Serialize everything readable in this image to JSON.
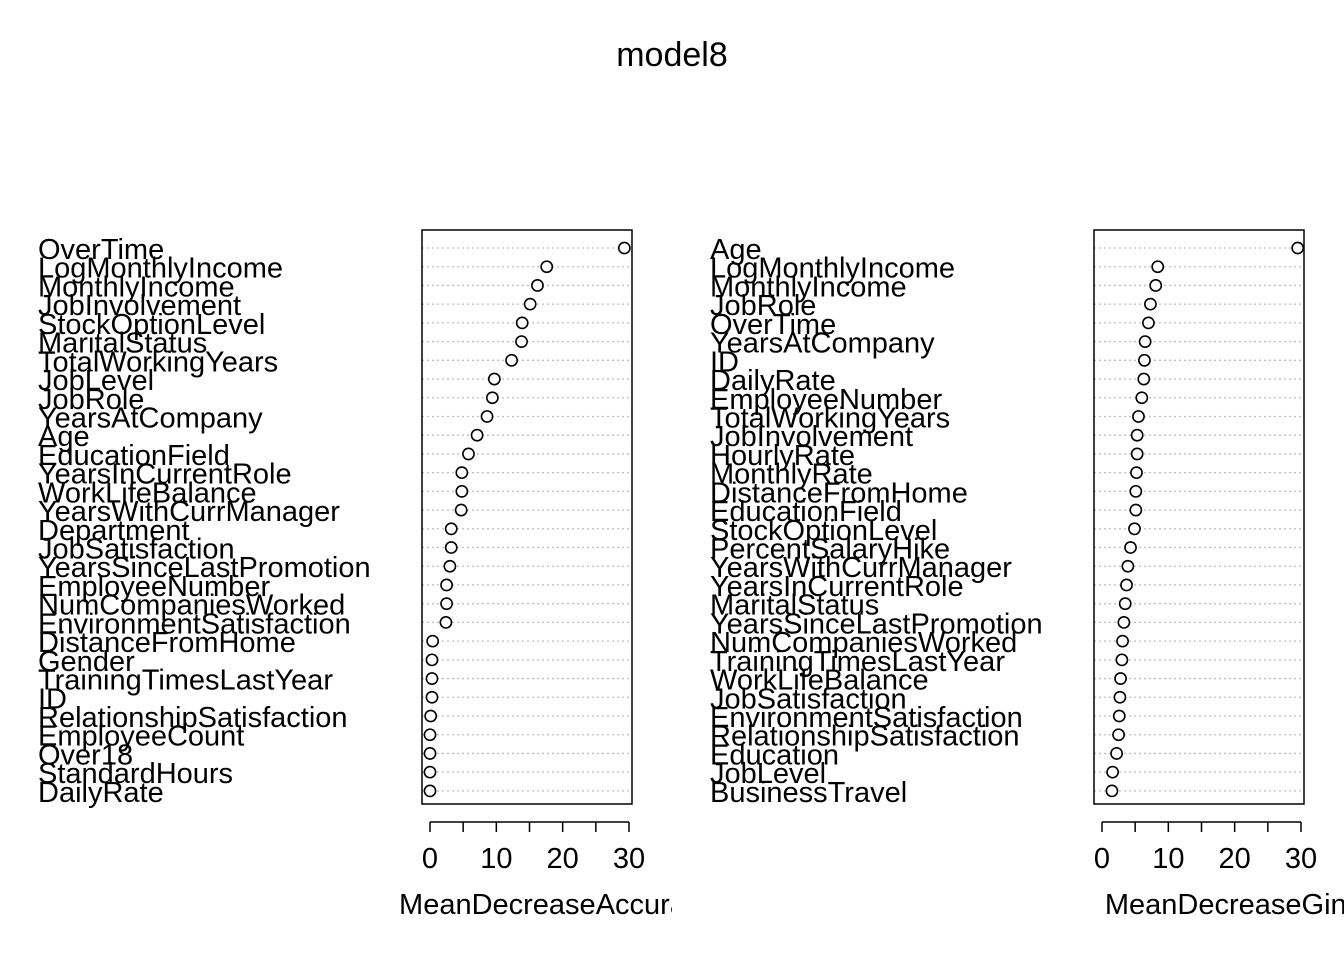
{
  "title": "model8",
  "chart_data": [
    {
      "type": "scatter",
      "style": "dotchart",
      "xlabel": "MeanDecreaseAccuracy",
      "xlim": [
        0,
        30
      ],
      "xticks": [
        0,
        10,
        20,
        30
      ],
      "grid": "dotted horizontal",
      "labels": [
        "OverTime",
        "LogMonthlyIncome",
        "MonthlyIncome",
        "JobInvolvement",
        "StockOptionLevel",
        "MaritalStatus",
        "TotalWorkingYears",
        "JobLevel",
        "JobRole",
        "YearsAtCompany",
        "Age",
        "EducationField",
        "YearsInCurrentRole",
        "WorkLifeBalance",
        "YearsWithCurrManager",
        "Department",
        "JobSatisfaction",
        "YearsSinceLastPromotion",
        "EmployeeNumber",
        "NumCompaniesWorked",
        "EnvironmentSatisfaction",
        "DistanceFromHome",
        "Gender",
        "TrainingTimesLastYear",
        "ID",
        "RelationshipSatisfaction",
        "EmployeeCount",
        "Over18",
        "StandardHours",
        "DailyRate"
      ],
      "values": [
        29.3,
        17.6,
        16.2,
        15.1,
        13.9,
        13.8,
        12.3,
        9.7,
        9.4,
        8.6,
        7.1,
        5.8,
        4.8,
        4.8,
        4.7,
        3.2,
        3.2,
        3.0,
        2.5,
        2.5,
        2.4,
        0.4,
        0.3,
        0.3,
        0.3,
        0.1,
        0.0,
        0.0,
        0.0,
        0.0
      ]
    },
    {
      "type": "scatter",
      "style": "dotchart",
      "xlabel": "MeanDecreaseGini",
      "xlim": [
        0,
        30
      ],
      "xticks": [
        0,
        10,
        20,
        30
      ],
      "grid": "dotted horizontal",
      "labels": [
        "Age",
        "LogMonthlyIncome",
        "MonthlyIncome",
        "JobRole",
        "OverTime",
        "YearsAtCompany",
        "ID",
        "DailyRate",
        "EmployeeNumber",
        "TotalWorkingYears",
        "JobInvolvement",
        "HourlyRate",
        "MonthlyRate",
        "DistanceFromHome",
        "EducationField",
        "StockOptionLevel",
        "PercentSalaryHike",
        "YearsWithCurrManager",
        "YearsInCurrentRole",
        "MaritalStatus",
        "YearsSinceLastPromotion",
        "NumCompaniesWorked",
        "TrainingTimesLastYear",
        "WorkLifeBalance",
        "JobSatisfaction",
        "EnvironmentSatisfaction",
        "RelationshipSatisfaction",
        "Education",
        "JobLevel",
        "BusinessTravel"
      ],
      "values": [
        29.5,
        8.4,
        8.1,
        7.3,
        7.0,
        6.5,
        6.4,
        6.3,
        6.0,
        5.5,
        5.3,
        5.3,
        5.2,
        5.1,
        5.1,
        4.9,
        4.3,
        3.9,
        3.7,
        3.5,
        3.3,
        3.1,
        3.0,
        2.8,
        2.7,
        2.6,
        2.5,
        2.2,
        1.6,
        1.5
      ]
    }
  ]
}
